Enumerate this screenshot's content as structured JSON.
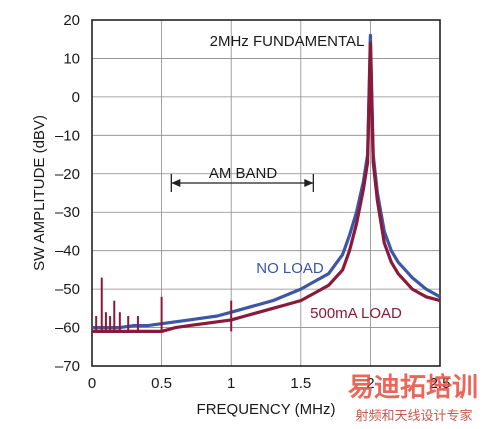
{
  "chart_data": {
    "type": "line",
    "title": "",
    "xlabel": "FREQUENCY (MHz)",
    "ylabel": "SW AMPLITUDE (dBV)",
    "xlim": [
      0,
      2.5
    ],
    "ylim": [
      -70,
      20
    ],
    "x_ticks": [
      "0",
      "0.5",
      "1",
      "1.5",
      "2",
      "2.5"
    ],
    "y_ticks": [
      "20",
      "10",
      "0",
      "–10",
      "–20",
      "–30",
      "–40",
      "–50",
      "–60",
      "–70"
    ],
    "grid": true,
    "series": [
      {
        "name": "NO LOAD",
        "color": "#3d56a6",
        "x": [
          0.0,
          0.05,
          0.1,
          0.2,
          0.3,
          0.4,
          0.5,
          0.6,
          0.7,
          0.8,
          0.9,
          1.0,
          1.1,
          1.2,
          1.3,
          1.4,
          1.5,
          1.6,
          1.7,
          1.8,
          1.85,
          1.9,
          1.95,
          1.98,
          2.0,
          2.02,
          2.05,
          2.1,
          2.15,
          2.2,
          2.3,
          2.4,
          2.5
        ],
        "y": [
          -60,
          -60,
          -60,
          -60,
          -59.5,
          -59.5,
          -59,
          -58.5,
          -58,
          -57.5,
          -57,
          -56,
          -55,
          -54,
          -53,
          -51.5,
          -50,
          -48,
          -46,
          -41,
          -36,
          -30,
          -22,
          -15,
          16,
          -15,
          -25,
          -35,
          -40,
          -43,
          -47,
          -50,
          -52
        ]
      },
      {
        "name": "500mA LOAD",
        "color": "#8b1a3a",
        "x": [
          0.0,
          0.05,
          0.1,
          0.2,
          0.3,
          0.4,
          0.5,
          0.6,
          0.7,
          0.8,
          0.9,
          1.0,
          1.1,
          1.2,
          1.3,
          1.4,
          1.5,
          1.6,
          1.7,
          1.8,
          1.85,
          1.9,
          1.95,
          1.98,
          2.0,
          2.02,
          2.05,
          2.1,
          2.15,
          2.2,
          2.3,
          2.4,
          2.5
        ],
        "y": [
          -61,
          -61,
          -61,
          -61,
          -61,
          -61,
          -61,
          -60,
          -59.5,
          -59,
          -58.5,
          -58,
          -57,
          -56,
          -55,
          -54,
          -53,
          -51,
          -49,
          -45,
          -40,
          -33,
          -24,
          -17,
          14,
          -17,
          -27,
          -38,
          -43,
          -46,
          -50,
          -52,
          -53
        ]
      }
    ],
    "spurs": [
      {
        "x": 0.03,
        "y": -57
      },
      {
        "x": 0.07,
        "y": -47
      },
      {
        "x": 0.1,
        "y": -56
      },
      {
        "x": 0.13,
        "y": -57
      },
      {
        "x": 0.16,
        "y": -53
      },
      {
        "x": 0.2,
        "y": -56
      },
      {
        "x": 0.26,
        "y": -57
      },
      {
        "x": 0.33,
        "y": -57
      },
      {
        "x": 0.5,
        "y": -52
      },
      {
        "x": 1.0,
        "y": -53
      }
    ],
    "annotations": {
      "fundamental": "2MHz FUNDAMENTAL",
      "am_band": "AM BAND",
      "am_band_range": [
        0.57,
        1.59
      ],
      "no_load": "NO LOAD",
      "load": "500mA LOAD"
    }
  },
  "watermark": {
    "big": "易迪拓培训",
    "small": "射频和天线设计专家"
  }
}
